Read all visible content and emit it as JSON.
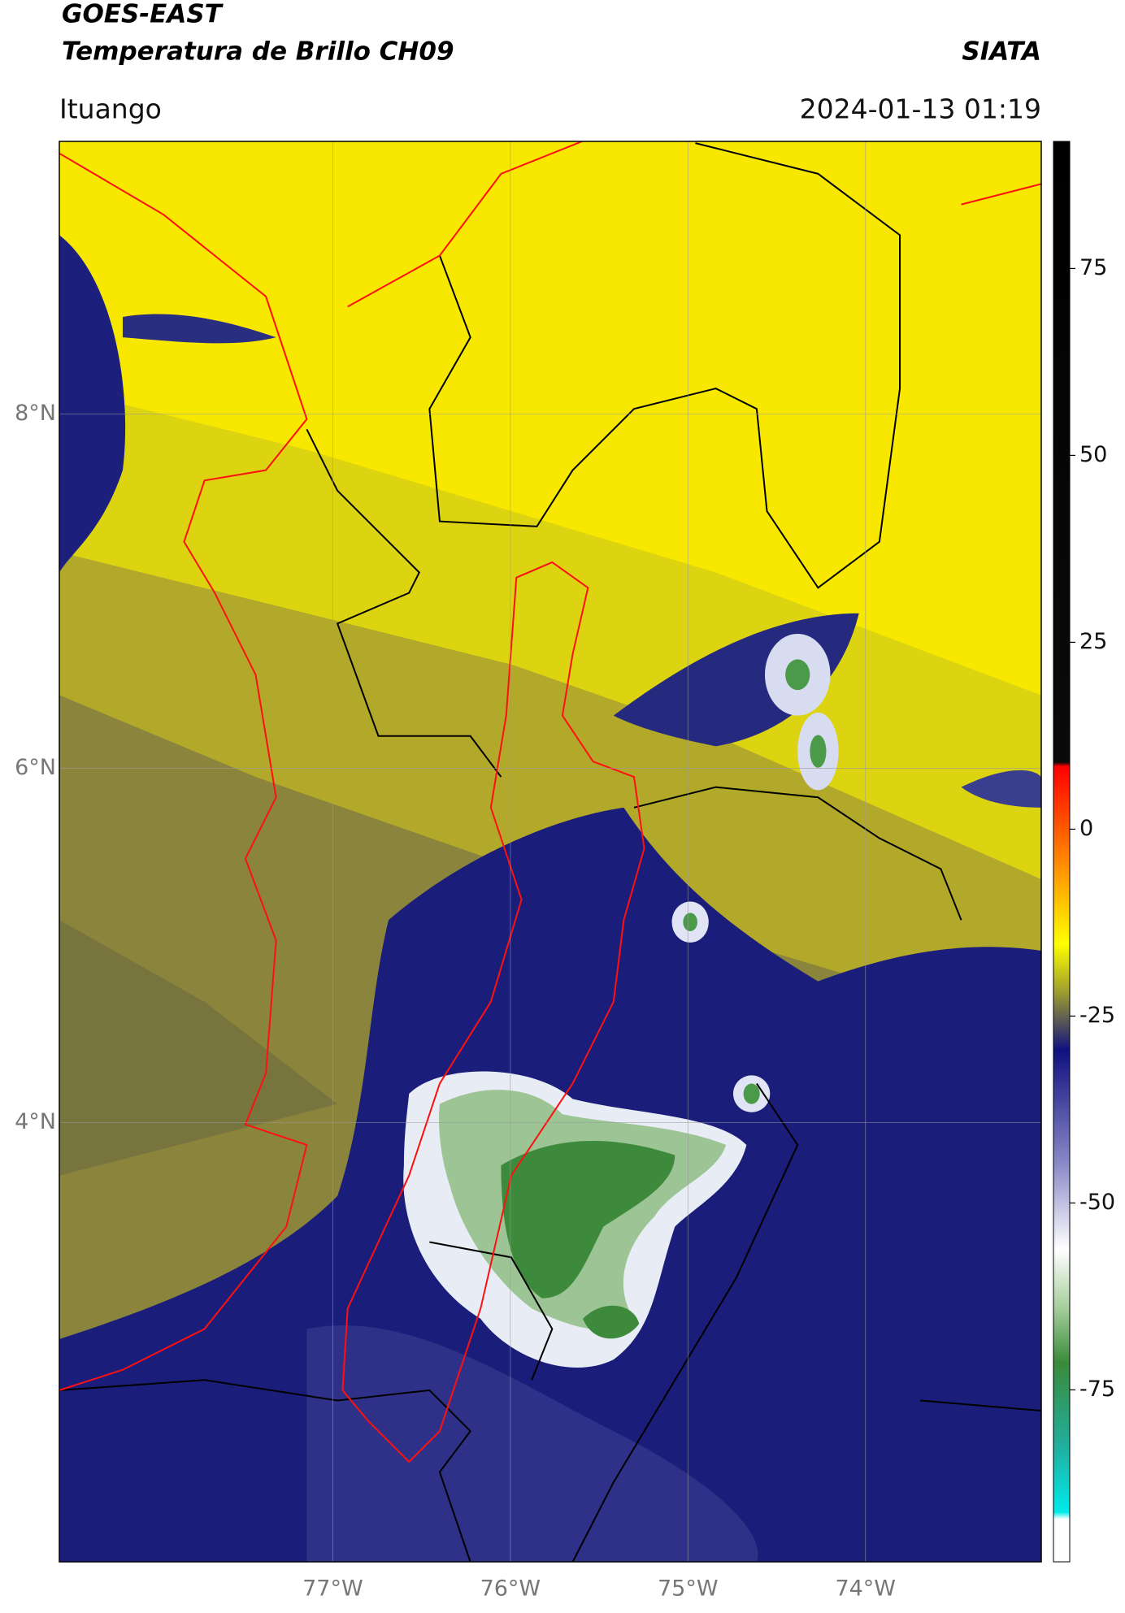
{
  "header": {
    "title": "GOES-EAST",
    "subtitle": "Temperatura de Brillo CH09",
    "source": "SIATA",
    "location": "Ituango",
    "datetime": "2024-01-13 01:19"
  },
  "map": {
    "xlim": [
      -78.54,
      -73.01
    ],
    "ylim": [
      1.52,
      9.54
    ],
    "grid": true,
    "xticks": [
      {
        "value": -77,
        "label": "77°W"
      },
      {
        "value": -76,
        "label": "76°W"
      },
      {
        "value": -75,
        "label": "75°W"
      },
      {
        "value": -74,
        "label": "74°W"
      }
    ],
    "yticks": [
      {
        "value": 8,
        "label": "8°N"
      },
      {
        "value": 6,
        "label": "6°N"
      },
      {
        "value": 4,
        "label": "4°N"
      }
    ]
  },
  "colorbar": {
    "lim": [
      -98,
      92
    ],
    "ticks": [
      75,
      50,
      25,
      0,
      -25,
      -50,
      -75
    ]
  }
}
